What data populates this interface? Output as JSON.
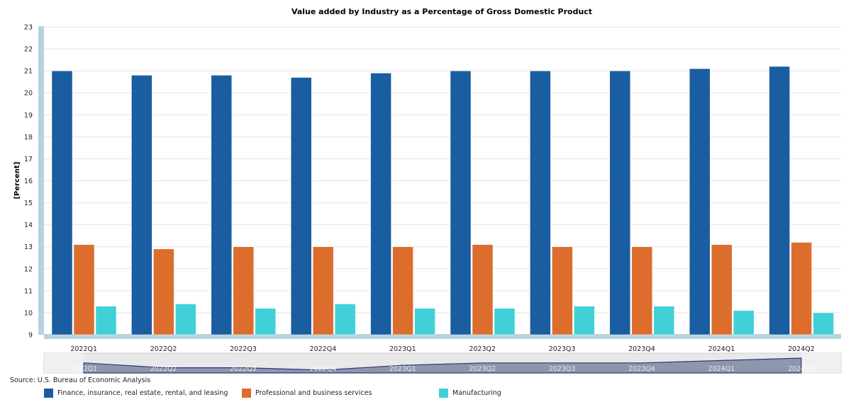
{
  "source": "Source: U.S. Bureau of Economic Analysis",
  "chart_data": {
    "type": "bar",
    "title": "Value added by Industry as a Percentage of Gross Domestic Product",
    "xlabel": "",
    "ylabel": "[Percent]",
    "ylim": [
      9,
      23
    ],
    "yticks": [
      "9",
      "10",
      "11",
      "12",
      "13",
      "14",
      "15",
      "16",
      "17",
      "18",
      "19",
      "20",
      "21",
      "22",
      "23"
    ],
    "grid": true,
    "legend_position": "bottom",
    "categories": [
      "2022Q1",
      "2022Q2",
      "2022Q3",
      "2022Q4",
      "2023Q1",
      "2023Q2",
      "2023Q3",
      "2023Q4",
      "2024Q1",
      "2024Q2"
    ],
    "series": [
      {
        "name": "Finance, insurance, real estate, rental, and leasing",
        "color": "#1a5da0",
        "values": [
          21.0,
          20.8,
          20.8,
          20.7,
          20.9,
          21.0,
          21.0,
          21.0,
          21.1,
          21.2
        ]
      },
      {
        "name": "Professional and business services",
        "color": "#dd6d2c",
        "values": [
          13.1,
          12.9,
          13.0,
          13.0,
          13.0,
          13.1,
          13.0,
          13.0,
          13.1,
          13.2
        ]
      },
      {
        "name": "Manufacturing",
        "color": "#40d0d8",
        "values": [
          10.3,
          10.4,
          10.2,
          10.4,
          10.2,
          10.2,
          10.3,
          10.3,
          10.1,
          10.0
        ]
      }
    ]
  }
}
